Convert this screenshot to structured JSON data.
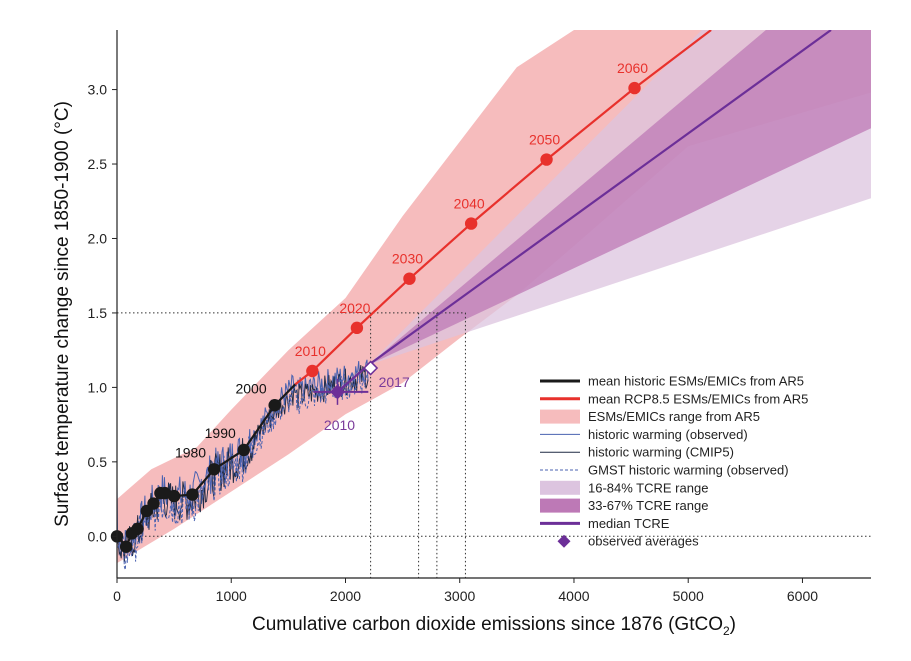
{
  "chart_data": {
    "type": "line",
    "xlabel": "Cumulative carbon dioxide emissions since 1876 (GtCO",
    "xlabel_sub": "2",
    "xlabel_close": ")",
    "ylabel": "Surface temperature change since 1850-1900 (°C)",
    "xlim": [
      0,
      6600
    ],
    "ylim": [
      -0.28,
      3.4
    ],
    "xticks": [
      0,
      1000,
      2000,
      3000,
      4000,
      5000,
      6000
    ],
    "yticks": [
      0.0,
      0.5,
      1.0,
      1.5,
      2.0,
      2.5,
      3.0
    ],
    "ytick_labels": [
      "0.0",
      "0.5",
      "1.0",
      "1.5",
      "2.0",
      "2.5",
      "3.0"
    ],
    "colors": {
      "historic": "#1a1a1a",
      "rcp85": "#e8312c",
      "esm_range": "#f6bcbd",
      "tcre_16_84": "#dcc4df",
      "tcre_33_67": "#bd79b6",
      "median_tcre": "#6c2f98",
      "observed": "#4a62b0",
      "label_red": "#e8312c",
      "label_purple": "#7a3b9a"
    },
    "historic_mean": {
      "x": [
        0,
        80,
        130,
        180,
        260,
        320,
        380,
        420,
        500,
        660,
        850,
        1110,
        1380,
        1560
      ],
      "y": [
        0.0,
        -0.07,
        0.02,
        0.05,
        0.17,
        0.22,
        0.29,
        0.29,
        0.27,
        0.28,
        0.45,
        0.58,
        0.88,
        1.02
      ],
      "marker_years": [
        {
          "year": "1980",
          "x": 850,
          "y": 0.45
        },
        {
          "year": "1990",
          "x": 1110,
          "y": 0.58
        },
        {
          "year": "2000",
          "x": 1380,
          "y": 0.88
        }
      ]
    },
    "rcp85_mean": {
      "x": [
        1560,
        1710,
        2100,
        2560,
        3100,
        3760,
        4530,
        5200
      ],
      "y": [
        1.02,
        1.11,
        1.4,
        1.73,
        2.1,
        2.53,
        3.01,
        3.4
      ],
      "marker_years": [
        {
          "year": "2010",
          "x": 1710,
          "y": 1.11
        },
        {
          "year": "2020",
          "x": 2100,
          "y": 1.4
        },
        {
          "year": "2030",
          "x": 2560,
          "y": 1.73
        },
        {
          "year": "2040",
          "x": 3100,
          "y": 2.1
        },
        {
          "year": "2050",
          "x": 3760,
          "y": 2.53
        },
        {
          "year": "2060",
          "x": 4530,
          "y": 3.01
        }
      ]
    },
    "esm_range": {
      "upper": [
        [
          0,
          0.25
        ],
        [
          300,
          0.45
        ],
        [
          700,
          0.6
        ],
        [
          1000,
          0.85
        ],
        [
          1500,
          1.25
        ],
        [
          2000,
          1.6
        ],
        [
          2500,
          2.15
        ],
        [
          3000,
          2.65
        ],
        [
          3500,
          3.15
        ],
        [
          4000,
          3.4
        ]
      ],
      "lower": [
        [
          6600,
          3.4
        ],
        [
          6600,
          2.98
        ],
        [
          5000,
          2.62
        ],
        [
          4000,
          1.95
        ],
        [
          3500,
          1.62
        ],
        [
          3000,
          1.33
        ],
        [
          2500,
          1.03
        ],
        [
          2000,
          0.82
        ],
        [
          1500,
          0.55
        ],
        [
          1000,
          0.3
        ],
        [
          500,
          0.05
        ],
        [
          0,
          -0.18
        ]
      ]
    },
    "tcre_16_84": {
      "start": [
        2200,
        1.15
      ],
      "upper_end": [
        5120,
        3.4
      ],
      "lower_end": [
        6600,
        2.27
      ]
    },
    "tcre_33_67": {
      "start": [
        2200,
        1.15
      ],
      "upper_end": [
        5680,
        3.4
      ],
      "lower_end": [
        6600,
        2.74
      ]
    },
    "median_tcre": {
      "x": [
        1930,
        2200,
        6250
      ],
      "y": [
        0.97,
        1.15,
        3.4
      ]
    },
    "observed_points": [
      {
        "label": "2010",
        "x": 1930,
        "y": 0.97,
        "xerr": [
          1720,
          2200
        ],
        "filled": true
      },
      {
        "label": "2017",
        "x": 2220,
        "y": 1.13,
        "filled": false
      }
    ],
    "reference_lines": {
      "y15": 1.5,
      "y0": 0.0,
      "x_verticals": [
        2220,
        2640,
        2800,
        3050
      ]
    },
    "legend": {
      "items": [
        "mean historic ESMs/EMICs from AR5",
        "mean RCP8.5 ESMs/EMICs from AR5",
        "ESMs/EMICs range from AR5",
        "historic warming (observed)",
        "historic warming (CMIP5)",
        "GMST historic warming (observed)",
        "16-84% TCRE range",
        "33-67% TCRE range",
        "median TCRE",
        "observed averages"
      ]
    }
  }
}
